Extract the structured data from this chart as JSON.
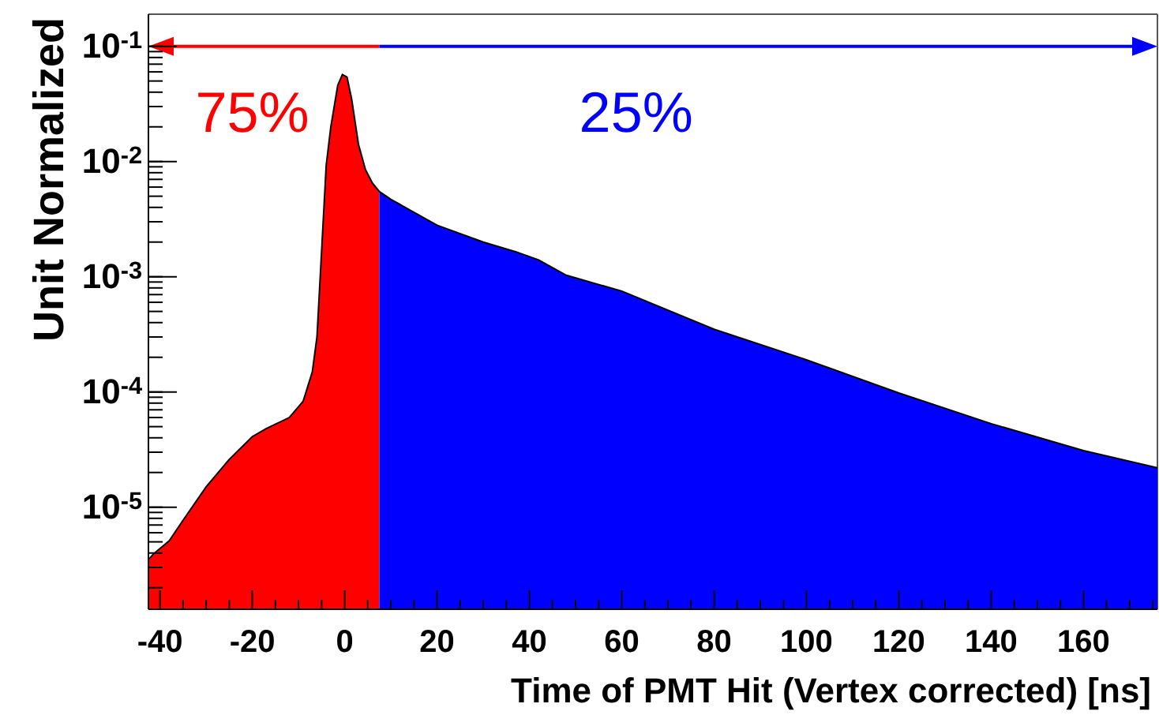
{
  "chart_data": {
    "type": "area",
    "xlabel": "Time of PMT Hit (Vertex corrected) [ns]",
    "ylabel": "Unit Normalized",
    "log": "y",
    "grid": false,
    "legend": false,
    "xlim": [
      -42.5,
      176
    ],
    "ylim": [
      1.3e-06,
      0.19
    ],
    "xticks": [
      -40,
      {
        "value": -35,
        "label": null
      },
      {
        "value": -30,
        "label": null
      },
      {
        "value": -25,
        "label": null
      },
      -20,
      {
        "value": -15,
        "label": null
      },
      {
        "value": -10,
        "label": null
      },
      {
        "value": -5,
        "label": null
      },
      0,
      {
        "value": 5,
        "label": null
      },
      {
        "value": 10,
        "label": null
      },
      {
        "value": 15,
        "label": null
      },
      20,
      {
        "value": 25,
        "label": null
      },
      {
        "value": 30,
        "label": null
      },
      {
        "value": 35,
        "label": null
      },
      40,
      {
        "value": 45,
        "label": null
      },
      {
        "value": 50,
        "label": null
      },
      {
        "value": 55,
        "label": null
      },
      60,
      {
        "value": 65,
        "label": null
      },
      {
        "value": 70,
        "label": null
      },
      {
        "value": 75,
        "label": null
      },
      80,
      {
        "value": 85,
        "label": null
      },
      {
        "value": 90,
        "label": null
      },
      {
        "value": 95,
        "label": null
      },
      100,
      {
        "value": 105,
        "label": null
      },
      {
        "value": 110,
        "label": null
      },
      {
        "value": 115,
        "label": null
      },
      120,
      {
        "value": 125,
        "label": null
      },
      {
        "value": 130,
        "label": null
      },
      {
        "value": 135,
        "label": null
      },
      140,
      {
        "value": 145,
        "label": null
      },
      {
        "value": 150,
        "label": null
      },
      {
        "value": 155,
        "label": null
      },
      160,
      {
        "value": 165,
        "label": null
      },
      {
        "value": 170,
        "label": null
      },
      {
        "value": 175,
        "label": null
      }
    ],
    "yticks": [
      {
        "value": 2e-06,
        "label": null
      },
      {
        "value": 3e-06,
        "label": null
      },
      {
        "value": 4e-06,
        "label": null
      },
      {
        "value": 5e-06,
        "label": null
      },
      {
        "value": 6e-06,
        "label": null
      },
      {
        "value": 7e-06,
        "label": null
      },
      {
        "value": 8e-06,
        "label": null
      },
      {
        "value": 9e-06,
        "label": null
      },
      {
        "value": 1e-05,
        "label": "10$^{-5}$"
      },
      {
        "value": 2e-05,
        "label": null
      },
      {
        "value": 3e-05,
        "label": null
      },
      {
        "value": 4e-05,
        "label": null
      },
      {
        "value": 5e-05,
        "label": null
      },
      {
        "value": 6e-05,
        "label": null
      },
      {
        "value": 7e-05,
        "label": null
      },
      {
        "value": 8e-05,
        "label": null
      },
      {
        "value": 9e-05,
        "label": null
      },
      {
        "value": 0.0001,
        "label": "10$^{-4}$"
      },
      {
        "value": 0.0002,
        "label": null
      },
      {
        "value": 0.0003,
        "label": null
      },
      {
        "value": 0.0004,
        "label": null
      },
      {
        "value": 0.0005,
        "label": null
      },
      {
        "value": 0.0006,
        "label": null
      },
      {
        "value": 0.0007,
        "label": null
      },
      {
        "value": 0.0008,
        "label": null
      },
      {
        "value": 0.0009,
        "label": null
      },
      {
        "value": 0.001,
        "label": "10$^{-3}$"
      },
      {
        "value": 0.002,
        "label": null
      },
      {
        "value": 0.003,
        "label": null
      },
      {
        "value": 0.004,
        "label": null
      },
      {
        "value": 0.005,
        "label": null
      },
      {
        "value": 0.006,
        "label": null
      },
      {
        "value": 0.007,
        "label": null
      },
      {
        "value": 0.008,
        "label": null
      },
      {
        "value": 0.009,
        "label": null
      },
      {
        "value": 0.01,
        "label": "10$^{-2}$"
      },
      {
        "value": 0.02,
        "label": null
      },
      {
        "value": 0.03,
        "label": null
      },
      {
        "value": 0.04,
        "label": null
      },
      {
        "value": 0.05,
        "label": null
      },
      {
        "value": 0.06,
        "label": null
      },
      {
        "value": 0.07,
        "label": null
      },
      {
        "value": 0.08,
        "label": null
      },
      {
        "value": 0.09,
        "label": null
      },
      {
        "value": 0.1,
        "label": "10$^{-1}$"
      }
    ],
    "annotations": [
      "75%",
      "25%"
    ],
    "series": [
      {
        "color": "#ff0000",
        "x": [
          -42.5,
          -41.5,
          -38,
          -35,
          -30,
          -25,
          -20,
          -17,
          -12,
          -9,
          -7,
          -6,
          -4,
          -3,
          -1.5,
          -0.5,
          0.5,
          1.5,
          3,
          4.5,
          6,
          7.5
        ],
        "values": [
          3.5e-06,
          3.9e-06,
          5.1e-06,
          7.7e-06,
          1.5e-05,
          2.6e-05,
          4.1e-05,
          4.8e-05,
          6e-05,
          8.3e-05,
          0.00015,
          0.0003,
          0.0093,
          0.02,
          0.046,
          0.057,
          0.054,
          0.035,
          0.014,
          0.0085,
          0.0065,
          0.0055
        ]
      },
      {
        "color": "#0000ff",
        "x": [
          7.5,
          10,
          20,
          30,
          37,
          42,
          48,
          60,
          80,
          100,
          120,
          140,
          160,
          176
        ],
        "values": [
          0.0055,
          0.0047,
          0.0028,
          0.002,
          0.00165,
          0.0014,
          0.00103,
          0.00075,
          0.00035,
          0.00019,
          9.8e-05,
          5.3e-05,
          3.1e-05,
          2.2e-05
        ]
      }
    ]
  }
}
